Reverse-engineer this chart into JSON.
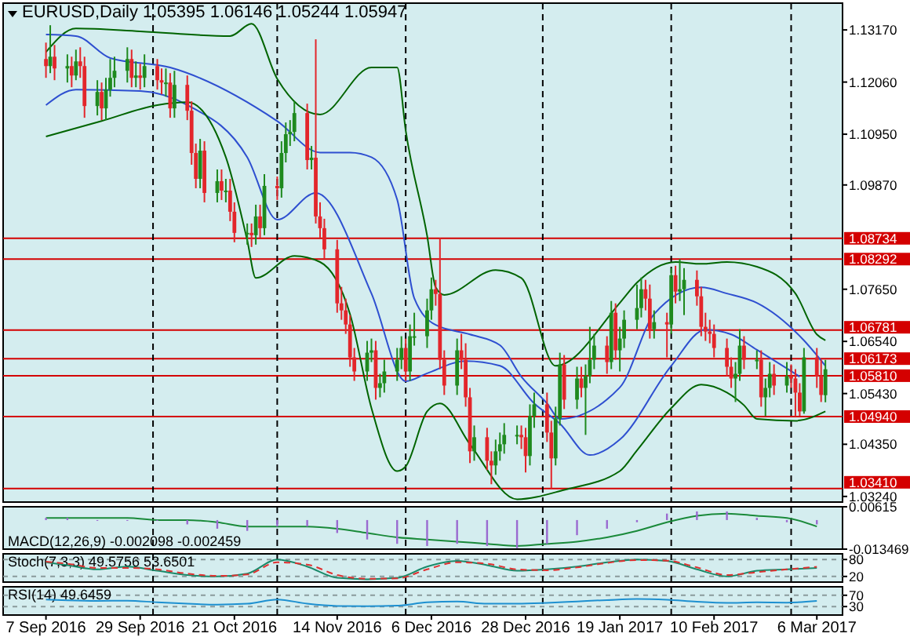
{
  "chart_data": [
    {
      "type": "candlestick",
      "title": "EURUSD,Daily 1.05395 1.06146 1.05244 1.05947",
      "x": [
        "2016-09-07",
        "2016-09-08",
        "2016-09-09",
        "2016-09-12",
        "2016-09-13",
        "2016-09-14",
        "2016-09-15",
        "2016-09-16",
        "2016-09-19",
        "2016-09-20",
        "2016-09-21",
        "2016-09-22",
        "2016-09-23",
        "2016-09-26",
        "2016-09-27",
        "2016-09-28",
        "2016-09-29",
        "2016-09-30",
        "2016-10-03",
        "2016-10-04",
        "2016-10-05",
        "2016-10-06",
        "2016-10-07",
        "2016-10-10",
        "2016-10-11",
        "2016-10-12",
        "2016-10-13",
        "2016-10-14",
        "2016-10-17",
        "2016-10-18",
        "2016-10-19",
        "2016-10-20",
        "2016-10-21",
        "2016-10-24",
        "2016-10-25",
        "2016-10-26",
        "2016-10-27",
        "2016-10-28",
        "2016-10-31",
        "2016-11-01",
        "2016-11-02",
        "2016-11-03",
        "2016-11-04",
        "2016-11-07",
        "2016-11-08",
        "2016-11-09",
        "2016-11-10",
        "2016-11-11",
        "2016-11-14",
        "2016-11-15",
        "2016-11-16",
        "2016-11-17",
        "2016-11-18",
        "2016-11-21",
        "2016-11-22",
        "2016-11-23",
        "2016-11-24",
        "2016-11-25",
        "2016-11-28",
        "2016-11-29",
        "2016-11-30",
        "2016-12-01",
        "2016-12-02",
        "2016-12-05",
        "2016-12-06",
        "2016-12-07",
        "2016-12-08",
        "2016-12-09",
        "2016-12-12",
        "2016-12-13",
        "2016-12-14",
        "2016-12-15",
        "2016-12-16",
        "2016-12-19",
        "2016-12-20",
        "2016-12-21",
        "2016-12-22",
        "2016-12-23",
        "2016-12-26",
        "2016-12-27",
        "2016-12-28",
        "2016-12-29",
        "2016-12-30",
        "2017-01-02",
        "2017-01-03",
        "2017-01-04",
        "2017-01-05",
        "2017-01-06",
        "2017-01-09",
        "2017-01-10",
        "2017-01-11",
        "2017-01-12",
        "2017-01-13",
        "2017-01-16",
        "2017-01-17",
        "2017-01-18",
        "2017-01-19",
        "2017-01-20",
        "2017-01-23",
        "2017-01-24",
        "2017-01-25",
        "2017-01-26",
        "2017-01-27",
        "2017-01-30",
        "2017-01-31",
        "2017-02-01",
        "2017-02-02",
        "2017-02-03",
        "2017-02-06",
        "2017-02-07",
        "2017-02-08",
        "2017-02-09",
        "2017-02-10",
        "2017-02-13",
        "2017-02-14",
        "2017-02-15",
        "2017-02-16",
        "2017-02-17",
        "2017-02-20",
        "2017-02-21",
        "2017-02-22",
        "2017-02-23",
        "2017-02-24",
        "2017-02-27",
        "2017-02-28",
        "2017-03-01",
        "2017-03-02",
        "2017-03-03",
        "2017-03-06",
        "2017-03-07",
        "2017-03-08"
      ],
      "ohlc": [
        [
          1.1255,
          1.129,
          1.1215,
          1.124
        ],
        [
          1.124,
          1.1327,
          1.1225,
          1.126
        ],
        [
          1.126,
          1.1285,
          1.121,
          1.1235
        ],
        [
          1.1235,
          1.1265,
          1.1205,
          1.124
        ],
        [
          1.124,
          1.126,
          1.1195,
          1.122
        ],
        [
          1.122,
          1.1275,
          1.121,
          1.125
        ],
        [
          1.125,
          1.128,
          1.1215,
          1.124
        ],
        [
          1.124,
          1.126,
          1.113,
          1.1155
        ],
        [
          1.1155,
          1.121,
          1.1135,
          1.1185
        ],
        [
          1.1185,
          1.1205,
          1.1125,
          1.115
        ],
        [
          1.115,
          1.1215,
          1.1125,
          1.119
        ],
        [
          1.119,
          1.1255,
          1.1175,
          1.1215
        ],
        [
          1.1215,
          1.126,
          1.1195,
          1.123
        ],
        [
          1.123,
          1.128,
          1.1205,
          1.1255
        ],
        [
          1.1255,
          1.1275,
          1.1195,
          1.1215
        ],
        [
          1.1215,
          1.125,
          1.1195,
          1.122
        ],
        [
          1.122,
          1.1245,
          1.119,
          1.1215
        ],
        [
          1.1215,
          1.1265,
          1.1195,
          1.124
        ],
        [
          1.124,
          1.1255,
          1.119,
          1.121
        ],
        [
          1.121,
          1.1235,
          1.118,
          1.1205
        ],
        [
          1.1205,
          1.1235,
          1.1175,
          1.1205
        ],
        [
          1.1205,
          1.1225,
          1.113,
          1.115
        ],
        [
          1.115,
          1.123,
          1.113,
          1.12
        ],
        [
          1.12,
          1.122,
          1.1125,
          1.1145
        ],
        [
          1.1145,
          1.1165,
          1.103,
          1.1055
        ],
        [
          1.1055,
          1.1075,
          1.098,
          1.1
        ],
        [
          1.1,
          1.1085,
          1.098,
          1.106
        ],
        [
          1.106,
          1.108,
          1.095,
          1.097
        ],
        [
          1.097,
          1.102,
          1.095,
          1.0995
        ],
        [
          1.0995,
          1.102,
          1.0955,
          1.0975
        ],
        [
          1.0975,
          1.1,
          1.095,
          1.0975
        ],
        [
          1.0975,
          1.1,
          1.091,
          1.093
        ],
        [
          1.093,
          1.095,
          1.0865,
          1.0885
        ],
        [
          1.0885,
          1.0905,
          1.086,
          1.0885
        ],
        [
          1.0885,
          1.0905,
          1.0855,
          1.088
        ],
        [
          1.088,
          1.0945,
          1.086,
          1.092
        ],
        [
          1.092,
          1.0945,
          1.0875,
          1.0895
        ],
        [
          1.0895,
          1.101,
          1.088,
          1.0985
        ],
        [
          1.0985,
          1.1005,
          1.0955,
          1.098
        ],
        [
          1.098,
          1.108,
          1.096,
          1.1055
        ],
        [
          1.1055,
          1.112,
          1.1035,
          1.1095
        ],
        [
          1.1095,
          1.1125,
          1.107,
          1.11
        ],
        [
          1.11,
          1.1165,
          1.108,
          1.114
        ],
        [
          1.114,
          1.116,
          1.102,
          1.104
        ],
        [
          1.104,
          1.107,
          1.102,
          1.1045
        ],
        [
          1.1045,
          1.1297,
          1.0905,
          1.092
        ],
        [
          1.092,
          1.095,
          1.0875,
          1.0895
        ],
        [
          1.0895,
          1.0915,
          1.083,
          1.085
        ],
        [
          1.085,
          1.087,
          1.0715,
          1.0735
        ],
        [
          1.0735,
          1.077,
          1.07,
          1.072
        ],
        [
          1.072,
          1.0745,
          1.067,
          1.069
        ],
        [
          1.069,
          1.071,
          1.06,
          1.062
        ],
        [
          1.062,
          1.064,
          1.057,
          1.059
        ],
        [
          1.059,
          1.0655,
          1.057,
          1.063
        ],
        [
          1.063,
          1.066,
          1.061,
          1.0635
        ],
        [
          1.0635,
          1.0655,
          1.053,
          1.0555
        ],
        [
          1.0555,
          1.0585,
          1.0535,
          1.0565
        ],
        [
          1.0565,
          1.0615,
          1.0545,
          1.059
        ],
        [
          1.059,
          1.064,
          1.057,
          1.0615
        ],
        [
          1.0615,
          1.0665,
          1.0595,
          1.064
        ],
        [
          1.064,
          1.066,
          1.057,
          1.059
        ],
        [
          1.059,
          1.069,
          1.057,
          1.0665
        ],
        [
          1.0665,
          1.0715,
          1.0645,
          1.0665
        ],
        [
          1.0665,
          1.0745,
          1.064,
          1.072
        ],
        [
          1.072,
          1.079,
          1.07,
          1.0765
        ],
        [
          1.0765,
          1.0785,
          1.073,
          1.0755
        ],
        [
          1.0755,
          1.0874,
          1.0595,
          1.0615
        ],
        [
          1.0615,
          1.0635,
          1.054,
          1.056
        ],
        [
          1.056,
          1.066,
          1.054,
          1.0635
        ],
        [
          1.0635,
          1.067,
          1.0595,
          1.0615
        ],
        [
          1.0615,
          1.065,
          1.0515,
          1.0535
        ],
        [
          1.0535,
          1.0555,
          1.0395,
          1.042
        ],
        [
          1.042,
          1.0475,
          1.04,
          1.045
        ],
        [
          1.045,
          1.047,
          1.038,
          1.04
        ],
        [
          1.04,
          1.042,
          1.035,
          1.039
        ],
        [
          1.039,
          1.0445,
          1.037,
          1.042
        ],
        [
          1.042,
          1.046,
          1.04,
          1.0435
        ],
        [
          1.0435,
          1.048,
          1.0415,
          1.0455
        ],
        [
          1.0455,
          1.0475,
          1.0435,
          1.0455
        ],
        [
          1.0455,
          1.0475,
          1.0425,
          1.045
        ],
        [
          1.045,
          1.047,
          1.0375,
          1.041
        ],
        [
          1.041,
          1.052,
          1.039,
          1.0495
        ],
        [
          1.0495,
          1.0545,
          1.047,
          1.052
        ],
        [
          1.052,
          1.0545,
          1.044,
          1.046
        ],
        [
          1.046,
          1.0485,
          1.0341,
          1.0405
        ],
        [
          1.0405,
          1.0515,
          1.039,
          1.049
        ],
        [
          1.049,
          1.063,
          1.0475,
          1.0605
        ],
        [
          1.0605,
          1.0625,
          1.051,
          1.053
        ],
        [
          1.053,
          1.06,
          1.051,
          1.0575
        ],
        [
          1.0575,
          1.06,
          1.0535,
          1.0555
        ],
        [
          1.0555,
          1.0605,
          1.0455,
          1.058
        ],
        [
          1.058,
          1.0685,
          1.0565,
          1.0615
        ],
        [
          1.0615,
          1.067,
          1.0595,
          1.0645
        ],
        [
          1.0645,
          1.0665,
          1.0585,
          1.061
        ],
        [
          1.061,
          1.074,
          1.0595,
          1.0715
        ],
        [
          1.0715,
          1.0735,
          1.0615,
          1.0635
        ],
        [
          1.0635,
          1.0685,
          1.059,
          1.066
        ],
        [
          1.066,
          1.072,
          1.064,
          1.07
        ],
        [
          1.07,
          1.0775,
          1.068,
          1.0725
        ],
        [
          1.0725,
          1.079,
          1.0705,
          1.0765
        ],
        [
          1.0765,
          1.0785,
          1.072,
          1.0745
        ],
        [
          1.0745,
          1.0775,
          1.066,
          1.068
        ],
        [
          1.068,
          1.072,
          1.066,
          1.0695
        ],
        [
          1.0695,
          1.0715,
          1.062,
          1.069
        ],
        [
          1.069,
          1.081,
          1.067,
          1.0795
        ],
        [
          1.0795,
          1.0815,
          1.0735,
          1.076
        ],
        [
          1.076,
          1.0829,
          1.074,
          1.0765
        ],
        [
          1.0765,
          1.081,
          1.071,
          1.0785
        ],
        [
          1.0785,
          1.0805,
          1.073,
          1.075
        ],
        [
          1.075,
          1.077,
          1.0665,
          1.0685
        ],
        [
          1.0685,
          1.0715,
          1.0655,
          1.0675
        ],
        [
          1.0675,
          1.07,
          1.065,
          1.067
        ],
        [
          1.067,
          1.069,
          1.062,
          1.064
        ],
        [
          1.064,
          1.066,
          1.058,
          1.06
        ],
        [
          1.06,
          1.062,
          1.0555,
          1.0575
        ],
        [
          1.0575,
          1.061,
          1.0525,
          1.0585
        ],
        [
          1.0585,
          1.068,
          1.057,
          1.0645
        ],
        [
          1.0645,
          1.0665,
          1.0595,
          1.0615
        ],
        [
          1.0615,
          1.0635,
          1.0595,
          1.0615
        ],
        [
          1.0615,
          1.0635,
          1.0515,
          1.0535
        ],
        [
          1.0535,
          1.0575,
          1.0495,
          1.0555
        ],
        [
          1.0555,
          1.061,
          1.0535,
          1.0585
        ],
        [
          1.0585,
          1.0605,
          1.054,
          1.056
        ],
        [
          1.056,
          1.061,
          1.0545,
          1.058
        ],
        [
          1.058,
          1.0605,
          1.0555,
          1.0575
        ],
        [
          1.0575,
          1.0595,
          1.0494,
          1.0545
        ],
        [
          1.0545,
          1.0565,
          1.0495,
          1.0505
        ],
        [
          1.0505,
          1.064,
          1.05,
          1.062
        ],
        [
          1.062,
          1.064,
          1.0555,
          1.058
        ],
        [
          1.058,
          1.0615,
          1.0525,
          1.054
        ],
        [
          1.05395,
          1.06146,
          1.05244,
          1.05947
        ]
      ],
      "series": [
        {
          "type": "line",
          "color": "#006400",
          "x": [
            "2016-09-07",
            "2016-09-14",
            "2016-09-29",
            "2016-10-20",
            "2016-10-25",
            "2016-10-31",
            "2016-11-10",
            "2016-11-22",
            "2016-11-28",
            "2016-11-30",
            "2016-12-05",
            "2016-12-07",
            "2016-12-09",
            "2016-12-21",
            "2016-12-27",
            "2017-01-04",
            "2017-01-19",
            "2017-01-23",
            "2017-02-01",
            "2017-02-07",
            "2017-02-13",
            "2017-02-20",
            "2017-03-01",
            "2017-03-06",
            "2017-03-08"
          ],
          "values": [
            1.127,
            1.132,
            1.1314,
            1.1304,
            1.133,
            1.1213,
            1.1137,
            1.1237,
            1.1237,
            1.1103,
            1.0879,
            1.0769,
            1.0753,
            1.0806,
            1.0789,
            1.0602,
            1.0736,
            1.0779,
            1.0823,
            1.0819,
            1.0823,
            1.0813,
            1.0756,
            1.0669,
            1.0656
          ]
        },
        {
          "type": "line",
          "color": "#2e4fd0",
          "x": [
            "2016-09-07",
            "2016-09-14",
            "2016-09-22",
            "2016-10-06",
            "2016-10-31",
            "2016-11-10",
            "2016-11-17",
            "2016-11-22",
            "2016-11-28",
            "2016-12-02",
            "2016-12-07",
            "2016-12-15",
            "2016-12-22",
            "2016-12-27",
            "2017-01-02",
            "2017-01-05",
            "2017-01-19",
            "2017-01-27",
            "2017-02-07",
            "2017-02-13",
            "2017-02-20",
            "2017-03-03",
            "2017-03-08"
          ],
          "values": [
            1.1307,
            1.1304,
            1.1257,
            1.1237,
            1.1123,
            1.1056,
            1.1056,
            1.1046,
            1.0956,
            1.0746,
            1.0689,
            1.0669,
            1.0646,
            1.0579,
            1.0522,
            1.0489,
            1.0556,
            1.0712,
            1.0769,
            1.0756,
            1.0736,
            1.0656,
            1.0602
          ]
        },
        {
          "type": "line",
          "color": "#2e4fd0",
          "x": [
            "2016-09-07",
            "2016-09-14",
            "2016-09-29",
            "2016-10-10",
            "2016-10-24",
            "2016-10-31",
            "2016-11-09",
            "2016-11-22",
            "2016-11-30",
            "2016-12-05",
            "2016-12-14",
            "2016-12-22",
            "2016-12-30",
            "2017-01-05",
            "2017-01-12",
            "2017-01-19",
            "2017-01-31",
            "2017-02-08",
            "2017-02-14",
            "2017-02-20",
            "2017-03-02"
          ],
          "values": [
            1.1157,
            1.119,
            1.1187,
            1.1157,
            1.1046,
            1.0913,
            1.097,
            1.0756,
            1.0569,
            1.0586,
            1.0612,
            1.0602,
            1.0522,
            1.0479,
            1.0412,
            1.0445,
            1.0602,
            1.0679,
            1.0669,
            1.0636,
            1.0579
          ]
        },
        {
          "type": "line",
          "color": "#006400",
          "x": [
            "2016-09-07",
            "2016-09-20",
            "2016-10-03",
            "2016-10-10",
            "2016-10-19",
            "2016-10-24",
            "2016-10-26",
            "2016-11-04",
            "2016-11-10",
            "2016-11-17",
            "2016-11-22",
            "2016-11-28",
            "2016-11-30",
            "2016-12-05",
            "2016-12-08",
            "2016-12-15",
            "2016-12-26",
            "2017-01-06",
            "2017-01-19",
            "2017-01-23",
            "2017-01-31",
            "2017-02-07",
            "2017-02-13",
            "2017-02-17",
            "2017-02-20",
            "2017-03-01",
            "2017-03-08"
          ],
          "values": [
            1.109,
            1.1123,
            1.1157,
            1.1163,
            1.1046,
            1.0869,
            1.0789,
            1.0836,
            1.0823,
            1.0712,
            1.0512,
            1.0378,
            1.0388,
            1.0505,
            1.0522,
            1.0435,
            1.0318,
            1.0338,
            1.0378,
            1.0422,
            1.0512,
            1.0562,
            1.0545,
            1.0518,
            1.0489,
            1.0485,
            1.0505
          ]
        }
      ],
      "xlim": [
        "2016-08-28",
        "2017-03-12"
      ],
      "ylim": [
        1.0312,
        1.1374
      ],
      "yticks": [
        {
          "value": 1.1317,
          "label": "1.13170"
        },
        {
          "value": 1.1206,
          "label": "1.12060"
        },
        {
          "value": 1.1095,
          "label": "1.10950"
        },
        {
          "value": 1.0987,
          "label": "1.09870"
        },
        {
          "value": 1.0765,
          "label": "1.07650"
        },
        {
          "value": 1.0654,
          "label": "1.06540"
        },
        {
          "value": 1.0543,
          "label": "1.05430"
        },
        {
          "value": 1.0435,
          "label": "1.04350"
        },
        {
          "value": 1.0324,
          "label": "1.03240"
        }
      ],
      "ref_lines": [
        {
          "axis": "y",
          "value": 1.08734,
          "label": "1.08734",
          "color": "#d40000"
        },
        {
          "axis": "y",
          "value": 1.08292,
          "label": "1.08292",
          "color": "#d40000"
        },
        {
          "axis": "y",
          "value": 1.06781,
          "label": "1.06781",
          "color": "#d40000"
        },
        {
          "axis": "y",
          "value": 1.06173,
          "label": "1.06173",
          "color": "#d40000"
        },
        {
          "axis": "y",
          "value": 1.0581,
          "label": "1.05810",
          "color": "#d40000"
        },
        {
          "axis": "y",
          "value": 1.0494,
          "label": "1.04940",
          "color": "#d40000"
        },
        {
          "axis": "y",
          "value": 1.0341,
          "label": "1.03410",
          "color": "#d40000"
        },
        {
          "axis": "x",
          "value": "2016-10-02",
          "color": "#000000",
          "line_style": "dashed"
        },
        {
          "axis": "x",
          "value": "2016-10-31",
          "color": "#000000",
          "line_style": "dashed"
        },
        {
          "axis": "x",
          "value": "2016-11-30",
          "color": "#000000",
          "line_style": "dashed"
        },
        {
          "axis": "x",
          "value": "2017-01-01",
          "color": "#000000",
          "line_style": "dashed"
        },
        {
          "axis": "x",
          "value": "2017-01-31",
          "color": "#000000",
          "line_style": "dashed"
        },
        {
          "axis": "x",
          "value": "2017-02-28",
          "color": "#000000",
          "line_style": "dashed"
        }
      ],
      "tick_labels": "y"
    },
    {
      "type": "bar",
      "title": "MACD(12,26,9) -0.002098 -0.002459",
      "x": [
        "2016-09-07",
        "2016-09-12",
        "2016-09-19",
        "2016-09-26",
        "2016-10-03",
        "2016-10-10",
        "2016-10-17",
        "2016-10-24",
        "2016-10-31",
        "2016-11-07",
        "2016-11-14",
        "2016-11-21",
        "2016-11-28",
        "2016-12-05",
        "2016-12-12",
        "2016-12-19",
        "2016-12-26",
        "2017-01-02",
        "2017-01-09",
        "2017-01-16",
        "2017-01-23",
        "2017-01-30",
        "2017-02-06",
        "2017-02-13",
        "2017-02-20",
        "2017-02-27",
        "2017-03-06"
      ],
      "series": [
        {
          "type": "bar",
          "color": "#9a6ad0",
          "values": [
            0.001,
            0.001,
            0,
            0,
            0,
            -0.002,
            -0.004,
            -0.005,
            -0.003,
            -0.003,
            -0.006,
            -0.009,
            -0.011,
            -0.012,
            -0.011,
            -0.012,
            -0.013,
            -0.011,
            -0.007,
            -0.004,
            -0.001,
            0.003,
            0.004,
            0.004,
            0.001,
            -0.001,
            -0.002
          ]
        },
        {
          "type": "line",
          "color": "#1a8a3a",
          "values": [
            0.001,
            0.001,
            0.001,
            0.001,
            0,
            0,
            -0.001,
            -0.003,
            -0.003,
            -0.003,
            -0.004,
            -0.006,
            -0.008,
            -0.009,
            -0.01,
            -0.011,
            -0.012,
            -0.011,
            -0.01,
            -0.008,
            -0.005,
            -0.001,
            0.002,
            0.003,
            0.002,
            0.001,
            -0.003
          ]
        }
      ],
      "xlim": [
        "2016-08-28",
        "2017-03-12"
      ],
      "ylim": [
        -0.013469,
        0.00615
      ],
      "yticks": [
        0.00615,
        -0.013469
      ],
      "ref_lines": [
        {
          "axis": "x",
          "value": "2016-10-02",
          "color": "#000000",
          "line_style": "dashed"
        },
        {
          "axis": "x",
          "value": "2016-10-31",
          "color": "#000000",
          "line_style": "dashed"
        },
        {
          "axis": "x",
          "value": "2016-11-30",
          "color": "#000000",
          "line_style": "dashed"
        },
        {
          "axis": "x",
          "value": "2017-01-01",
          "color": "#000000",
          "line_style": "dashed"
        },
        {
          "axis": "x",
          "value": "2017-01-31",
          "color": "#000000",
          "line_style": "dashed"
        },
        {
          "axis": "x",
          "value": "2017-02-28",
          "color": "#000000",
          "line_style": "dashed"
        }
      ],
      "tick_labels": "y"
    },
    {
      "type": "line",
      "title": "Stoch(7,3,3) 49.5756 53.6501",
      "x": [
        "2016-09-07",
        "2016-09-12",
        "2016-09-19",
        "2016-09-26",
        "2016-10-03",
        "2016-10-10",
        "2016-10-17",
        "2016-10-24",
        "2016-10-31",
        "2016-11-07",
        "2016-11-14",
        "2016-11-21",
        "2016-11-28",
        "2016-12-05",
        "2016-12-12",
        "2016-12-19",
        "2016-12-26",
        "2017-01-02",
        "2017-01-09",
        "2017-01-16",
        "2017-01-23",
        "2017-01-30",
        "2017-02-06",
        "2017-02-13",
        "2017-02-20",
        "2017-02-27",
        "2017-03-06"
      ],
      "series": [
        {
          "color": "#1a8a6a",
          "values": [
            70,
            60,
            45,
            55,
            40,
            25,
            20,
            30,
            80,
            55,
            15,
            10,
            15,
            55,
            75,
            60,
            40,
            45,
            55,
            70,
            80,
            75,
            45,
            20,
            40,
            45,
            50
          ]
        },
        {
          "color": "#e03030",
          "line_style": "dashed",
          "values": [
            72,
            65,
            50,
            50,
            45,
            30,
            22,
            27,
            70,
            62,
            25,
            12,
            13,
            45,
            70,
            65,
            45,
            42,
            52,
            68,
            78,
            76,
            52,
            25,
            35,
            45,
            54
          ]
        }
      ],
      "xlim": [
        "2016-08-28",
        "2017-03-12"
      ],
      "ylim": [
        0,
        100
      ],
      "yticks": [
        20,
        80
      ],
      "grid": "y",
      "ref_lines": [
        {
          "axis": "x",
          "value": "2016-10-02",
          "color": "#000000",
          "line_style": "dashed"
        },
        {
          "axis": "x",
          "value": "2016-10-31",
          "color": "#000000",
          "line_style": "dashed"
        },
        {
          "axis": "x",
          "value": "2016-11-30",
          "color": "#000000",
          "line_style": "dashed"
        },
        {
          "axis": "x",
          "value": "2017-01-01",
          "color": "#000000",
          "line_style": "dashed"
        },
        {
          "axis": "x",
          "value": "2017-01-31",
          "color": "#000000",
          "line_style": "dashed"
        },
        {
          "axis": "x",
          "value": "2017-02-28",
          "color": "#000000",
          "line_style": "dashed"
        }
      ],
      "tick_labels": "y"
    },
    {
      "type": "line",
      "title": "RSI(14) 49.6459",
      "x": [
        "2016-09-07",
        "2016-09-12",
        "2016-09-19",
        "2016-09-26",
        "2016-10-03",
        "2016-10-10",
        "2016-10-17",
        "2016-10-24",
        "2016-10-31",
        "2016-11-07",
        "2016-11-14",
        "2016-11-21",
        "2016-11-28",
        "2016-12-05",
        "2016-12-12",
        "2016-12-19",
        "2016-12-26",
        "2017-01-02",
        "2017-01-09",
        "2017-01-16",
        "2017-01-23",
        "2017-01-30",
        "2017-02-06",
        "2017-02-13",
        "2017-02-20",
        "2017-02-27",
        "2017-03-06"
      ],
      "series": [
        {
          "color": "#1e90d0",
          "values": [
            55,
            52,
            50,
            51,
            45,
            40,
            37,
            40,
            55,
            40,
            32,
            31,
            33,
            45,
            48,
            40,
            40,
            43,
            48,
            53,
            57,
            54,
            47,
            43,
            45,
            44,
            50
          ]
        }
      ],
      "xlim": [
        "2016-08-28",
        "2017-03-12"
      ],
      "ylim": [
        0,
        100
      ],
      "yticks": [
        30,
        70
      ],
      "grid": "y",
      "xticks": [
        {
          "value": "2016-09-07",
          "label": "7 Sep 2016"
        },
        {
          "value": "2016-09-29",
          "label": "29 Sep 2016"
        },
        {
          "value": "2016-10-21",
          "label": "21 Oct 2016"
        },
        {
          "value": "2016-11-14",
          "label": "14 Nov 2016"
        },
        {
          "value": "2016-12-06",
          "label": "6 Dec 2016"
        },
        {
          "value": "2016-12-28",
          "label": "28 Dec 2016"
        },
        {
          "value": "2017-01-19",
          "label": "19 Jan 2017"
        },
        {
          "value": "2017-02-10",
          "label": "10 Feb 2017"
        },
        {
          "value": "2017-03-06",
          "label": "6 Mar 2017"
        }
      ],
      "ref_lines": [
        {
          "axis": "x",
          "value": "2016-10-02",
          "color": "#000000",
          "line_style": "dashed"
        },
        {
          "axis": "x",
          "value": "2016-10-31",
          "color": "#000000",
          "line_style": "dashed"
        },
        {
          "axis": "x",
          "value": "2016-11-30",
          "color": "#000000",
          "line_style": "dashed"
        },
        {
          "axis": "x",
          "value": "2017-01-01",
          "color": "#000000",
          "line_style": "dashed"
        },
        {
          "axis": "x",
          "value": "2017-01-31",
          "color": "#000000",
          "line_style": "dashed"
        },
        {
          "axis": "x",
          "value": "2017-02-28",
          "color": "#000000",
          "line_style": "dashed"
        }
      ]
    }
  ]
}
